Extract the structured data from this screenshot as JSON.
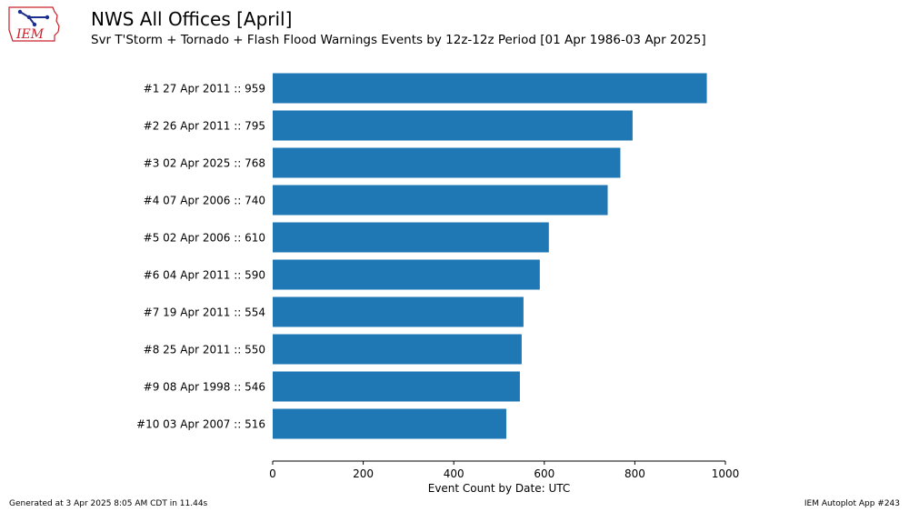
{
  "header": {
    "title": "NWS All Offices [April]",
    "subtitle": "Svr T'Storm + Tornado + Flash Flood Warnings Events by 12z-12z Period [01 Apr 1986-03 Apr 2025]",
    "logo_text": "IEM"
  },
  "footer": {
    "generated": "Generated at 3 Apr 2025 8:05 AM CDT in 11.44s",
    "app": "IEM Autoplot App #243"
  },
  "colors": {
    "bar": "#1f77b4",
    "logo_red": "#c8202a",
    "logo_blue": "#1c2f8c"
  },
  "chart_data": {
    "type": "bar",
    "orientation": "horizontal",
    "categories": [
      "#1  27 Apr 2011 :: 959",
      "#2  26 Apr 2011 :: 795",
      "#3  02 Apr 2025 :: 768",
      "#4  07 Apr 2006 :: 740",
      "#5  02 Apr 2006 :: 610",
      "#6  04 Apr 2011 :: 590",
      "#7  19 Apr 2011 :: 554",
      "#8  25 Apr 2011 :: 550",
      "#9  08 Apr 1998 :: 546",
      "#10  03 Apr 2007 :: 516"
    ],
    "values": [
      959,
      795,
      768,
      740,
      610,
      590,
      554,
      550,
      546,
      516
    ],
    "xlabel": "Event Count by Date: UTC",
    "xlim": [
      0,
      1000
    ],
    "xticks": [
      0,
      200,
      400,
      600,
      800,
      1000
    ],
    "grid": false
  }
}
